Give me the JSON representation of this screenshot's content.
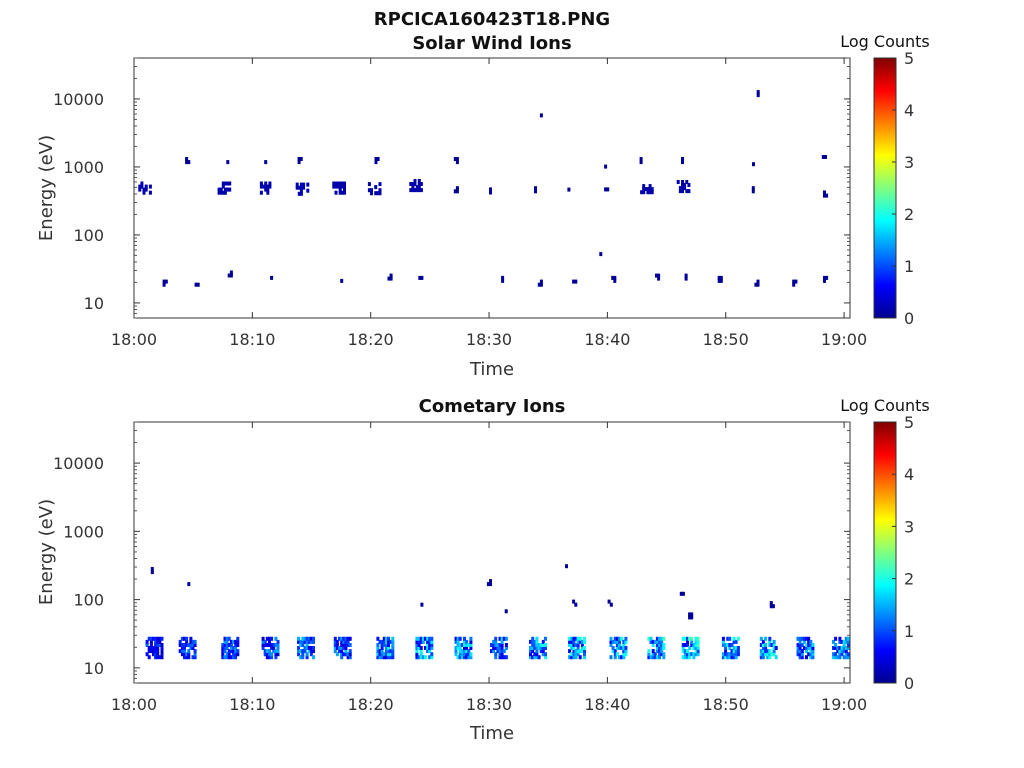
{
  "figure_title": "RPCICA160423T18.PNG",
  "chart_data": [
    {
      "type": "heatmap",
      "title": "Solar Wind Ions",
      "xlabel": "Time",
      "ylabel": "Energy (eV)",
      "x_ticks": [
        "18:00",
        "18:10",
        "18:20",
        "18:30",
        "18:40",
        "18:50",
        "19:00"
      ],
      "x_range_minutes": [
        0,
        60.5
      ],
      "y_scale": "log",
      "ylim": [
        6,
        40000
      ],
      "y_ticks": [
        "10",
        "100",
        "1000",
        "10000"
      ],
      "y_tick_values": [
        10,
        100,
        1000,
        10000
      ],
      "colorbar": {
        "label": "Log Counts",
        "range": [
          0,
          5
        ],
        "ticks": [
          "0",
          "1",
          "2",
          "3",
          "4",
          "5"
        ],
        "colormap": "jet"
      },
      "grid": false,
      "clusters": [
        {
          "t": 0.9,
          "e": 550,
          "v": 0.15
        },
        {
          "t": 2.6,
          "e": 22,
          "v": 0.05
        },
        {
          "t": 5.3,
          "e": 22,
          "v": 0.05
        },
        {
          "t": 4.5,
          "e": 1400,
          "v": 0.05
        },
        {
          "t": 7.6,
          "e": 550,
          "v": 0.15
        },
        {
          "t": 8.1,
          "e": 30,
          "v": 0.05
        },
        {
          "t": 7.8,
          "e": 1400,
          "v": 0.05
        },
        {
          "t": 11.0,
          "e": 550,
          "v": 0.15
        },
        {
          "t": 11.5,
          "e": 25,
          "v": 0.05
        },
        {
          "t": 11.0,
          "e": 1400,
          "v": 0.05
        },
        {
          "t": 14.2,
          "e": 530,
          "v": 0.2
        },
        {
          "t": 14.0,
          "e": 1400,
          "v": 0.05
        },
        {
          "t": 17.3,
          "e": 550,
          "v": 0.15
        },
        {
          "t": 17.6,
          "e": 25,
          "v": 0.05
        },
        {
          "t": 20.3,
          "e": 540,
          "v": 0.15
        },
        {
          "t": 20.5,
          "e": 1400,
          "v": 0.05
        },
        {
          "t": 21.6,
          "e": 27,
          "v": 0.05
        },
        {
          "t": 23.8,
          "e": 600,
          "v": 0.15
        },
        {
          "t": 24.2,
          "e": 25,
          "v": 0.05
        },
        {
          "t": 27.2,
          "e": 520,
          "v": 0.05
        },
        {
          "t": 27.2,
          "e": 1400,
          "v": 0.05
        },
        {
          "t": 30.0,
          "e": 500,
          "v": 0.05
        },
        {
          "t": 31.2,
          "e": 25,
          "v": 0.05
        },
        {
          "t": 33.8,
          "e": 520,
          "v": 0.05
        },
        {
          "t": 34.3,
          "e": 22,
          "v": 0.05
        },
        {
          "t": 34.3,
          "e": 6800,
          "v": 0.05
        },
        {
          "t": 36.8,
          "e": 550,
          "v": 0.05
        },
        {
          "t": 37.2,
          "e": 22,
          "v": 0.05
        },
        {
          "t": 39.9,
          "e": 500,
          "v": 0.05
        },
        {
          "t": 40.5,
          "e": 25,
          "v": 0.05
        },
        {
          "t": 39.9,
          "e": 1200,
          "v": 0.05
        },
        {
          "t": 39.5,
          "e": 62,
          "v": 0.05
        },
        {
          "t": 43.3,
          "e": 560,
          "v": 0.15
        },
        {
          "t": 44.2,
          "e": 27,
          "v": 0.05
        },
        {
          "t": 42.9,
          "e": 1400,
          "v": 0.05
        },
        {
          "t": 46.4,
          "e": 580,
          "v": 0.15
        },
        {
          "t": 46.7,
          "e": 27,
          "v": 0.05
        },
        {
          "t": 46.4,
          "e": 1400,
          "v": 0.05
        },
        {
          "t": 49.5,
          "e": 25,
          "v": 0.05
        },
        {
          "t": 52.6,
          "e": 22,
          "v": 0.05
        },
        {
          "t": 52.2,
          "e": 520,
          "v": 0.05
        },
        {
          "t": 52.8,
          "e": 13500,
          "v": 0.05
        },
        {
          "t": 52.4,
          "e": 1300,
          "v": 0.05
        },
        {
          "t": 55.8,
          "e": 22,
          "v": 0.05
        },
        {
          "t": 55.3,
          "e": 1400,
          "v": 0.05
        },
        {
          "t": 58.4,
          "e": 25,
          "v": 0.05
        },
        {
          "t": 58.3,
          "e": 1500,
          "v": 0.05
        },
        {
          "t": 58.4,
          "e": 450,
          "v": 0.05
        }
      ]
    },
    {
      "type": "heatmap",
      "title": "Cometary Ions",
      "xlabel": "Time",
      "ylabel": "Energy (eV)",
      "x_ticks": [
        "18:00",
        "18:10",
        "18:20",
        "18:30",
        "18:40",
        "18:50",
        "19:00"
      ],
      "x_range_minutes": [
        0,
        60.5
      ],
      "y_scale": "log",
      "ylim": [
        6,
        40000
      ],
      "y_ticks": [
        "10",
        "100",
        "1000",
        "10000"
      ],
      "y_tick_values": [
        10,
        100,
        1000,
        10000
      ],
      "colorbar": {
        "label": "Log Counts",
        "range": [
          0,
          5
        ],
        "ticks": [
          "0",
          "1",
          "2",
          "3",
          "4",
          "5"
        ],
        "colormap": "jet"
      },
      "grid": false,
      "clusters": [
        {
          "t": 1.7,
          "e": 22,
          "v": 0.8
        },
        {
          "t": 4.5,
          "e": 22,
          "v": 0.9
        },
        {
          "t": 8.1,
          "e": 22,
          "v": 1.0
        },
        {
          "t": 11.5,
          "e": 22,
          "v": 1.1
        },
        {
          "t": 14.5,
          "e": 22,
          "v": 1.2
        },
        {
          "t": 17.6,
          "e": 22,
          "v": 1.1
        },
        {
          "t": 21.2,
          "e": 22,
          "v": 1.3
        },
        {
          "t": 24.5,
          "e": 22,
          "v": 1.4
        },
        {
          "t": 27.8,
          "e": 22,
          "v": 1.4
        },
        {
          "t": 30.8,
          "e": 22,
          "v": 1.2
        },
        {
          "t": 34.1,
          "e": 22,
          "v": 1.5
        },
        {
          "t": 37.4,
          "e": 22,
          "v": 1.5
        },
        {
          "t": 40.9,
          "e": 22,
          "v": 1.5
        },
        {
          "t": 44.1,
          "e": 22,
          "v": 1.6
        },
        {
          "t": 47.0,
          "e": 22,
          "v": 1.6
        },
        {
          "t": 50.4,
          "e": 22,
          "v": 1.5
        },
        {
          "t": 53.6,
          "e": 22,
          "v": 1.6
        },
        {
          "t": 56.7,
          "e": 22,
          "v": 1.3
        },
        {
          "t": 59.7,
          "e": 22,
          "v": 1.3
        },
        {
          "t": 1.6,
          "e": 300,
          "v": 0.05
        },
        {
          "t": 4.5,
          "e": 200,
          "v": 0.05
        },
        {
          "t": 24.2,
          "e": 100,
          "v": 0.05
        },
        {
          "t": 30.0,
          "e": 200,
          "v": 0.05
        },
        {
          "t": 31.5,
          "e": 80,
          "v": 0.05
        },
        {
          "t": 36.6,
          "e": 330,
          "v": 0.05
        },
        {
          "t": 37.2,
          "e": 100,
          "v": 0.05
        },
        {
          "t": 40.2,
          "e": 100,
          "v": 0.05
        },
        {
          "t": 46.3,
          "e": 130,
          "v": 0.05
        },
        {
          "t": 47.0,
          "e": 65,
          "v": 0.05
        },
        {
          "t": 53.9,
          "e": 95,
          "v": 0.05
        }
      ]
    }
  ]
}
